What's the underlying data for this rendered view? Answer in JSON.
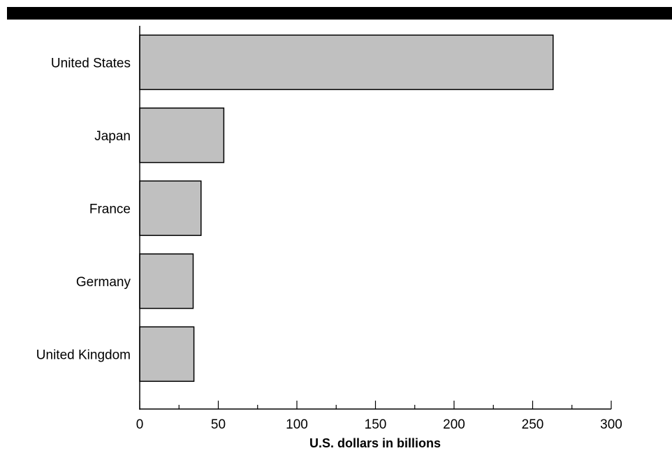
{
  "chart_data": {
    "type": "bar",
    "orientation": "horizontal",
    "categories": [
      "United States",
      "Japan",
      "France",
      "Germany",
      "United Kingdom"
    ],
    "values": [
      263,
      53.5,
      39,
      34,
      34.5
    ],
    "title": "",
    "xlabel": "U.S. dollars in billions",
    "ylabel": "",
    "xlim": [
      0,
      300
    ],
    "x_ticks": [
      0,
      50,
      100,
      150,
      200,
      250,
      300
    ],
    "minor_tick_step": 25,
    "grid": false,
    "legend": "none",
    "colors": {
      "bar_fill": "#c0c0c0",
      "bar_stroke": "#000000",
      "header_bar": "#000000"
    }
  }
}
